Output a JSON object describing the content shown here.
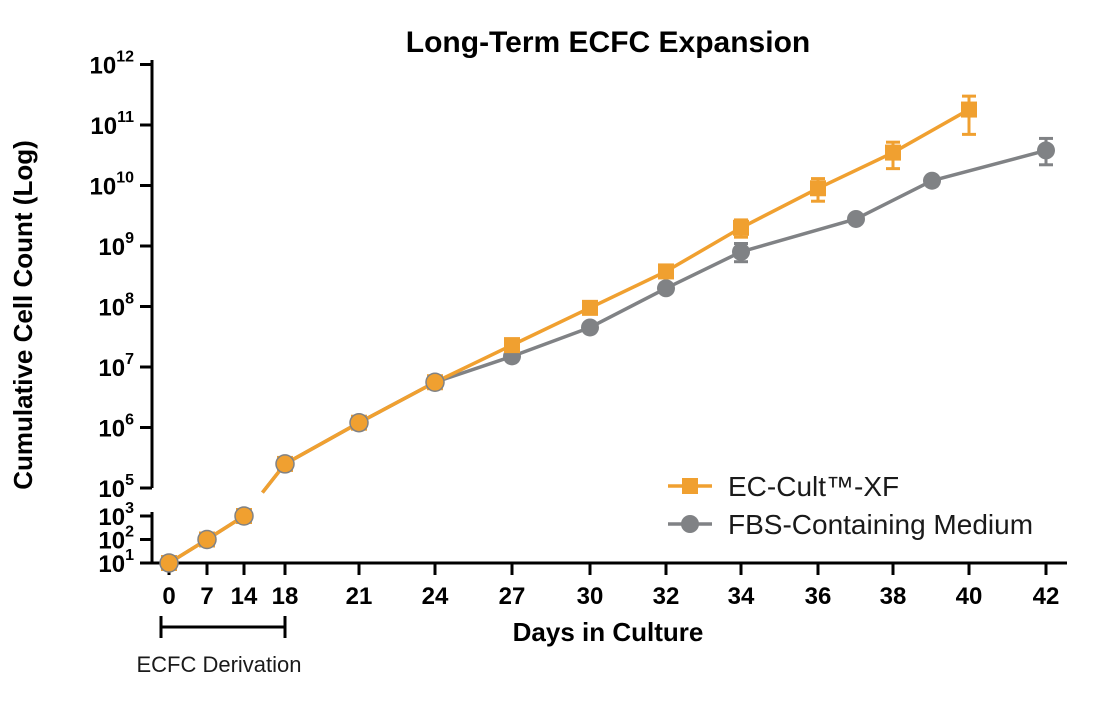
{
  "chart_data": {
    "type": "line",
    "title": "Long-Term ECFC Expansion",
    "xlabel": "Days in Culture",
    "ylabel": "Cumulative Cell Count (Log)",
    "y_scale": "log (broken axis)",
    "grid": false,
    "legend_position": "bottom-right",
    "x_ticks": [
      "0",
      "7",
      "14",
      "18",
      "21",
      "24",
      "27",
      "30",
      "32",
      "34",
      "36",
      "38",
      "40",
      "42"
    ],
    "y_ticks_lower": [
      {
        "base": "10",
        "exp": "1"
      },
      {
        "base": "10",
        "exp": "2"
      },
      {
        "base": "10",
        "exp": "3"
      }
    ],
    "y_ticks_upper": [
      {
        "base": "10",
        "exp": "5"
      },
      {
        "base": "10",
        "exp": "6"
      },
      {
        "base": "10",
        "exp": "7"
      },
      {
        "base": "10",
        "exp": "8"
      },
      {
        "base": "10",
        "exp": "9"
      },
      {
        "base": "10",
        "exp": "10"
      },
      {
        "base": "10",
        "exp": "11"
      },
      {
        "base": "10",
        "exp": "12"
      }
    ],
    "bracket_label": "ECFC Derivation",
    "bracket_range": [
      "0",
      "18"
    ],
    "series": [
      {
        "name": "EC-Cult™-XF",
        "color": "#F0A030",
        "marker": "square",
        "points": [
          {
            "x": "0",
            "y": 10
          },
          {
            "x": "7",
            "y": 100
          },
          {
            "x": "14",
            "y": 1000
          },
          {
            "x": "18",
            "y": 250000
          },
          {
            "x": "21",
            "y": 1200000
          },
          {
            "x": "24",
            "y": 5600000
          },
          {
            "x": "27",
            "y": 23000000
          },
          {
            "x": "30",
            "y": 95000000
          },
          {
            "x": "32",
            "y": 380000000
          },
          {
            "x": "34",
            "y": 2000000000,
            "err": [
              1400000000,
              2700000000
            ]
          },
          {
            "x": "36",
            "y": 9000000000,
            "err": [
              5500000000,
              13000000000
            ]
          },
          {
            "x": "38",
            "y": 35000000000,
            "err": [
              19000000000,
              52000000000
            ]
          },
          {
            "x": "40",
            "y": 180000000000,
            "err": [
              70000000000,
              300000000000
            ]
          }
        ]
      },
      {
        "name": "FBS-Containing Medium",
        "color": "#808285",
        "marker": "circle",
        "points": [
          {
            "x": "0",
            "y": 10
          },
          {
            "x": "7",
            "y": 100
          },
          {
            "x": "14",
            "y": 1000
          },
          {
            "x": "18",
            "y": 250000
          },
          {
            "x": "21",
            "y": 1200000
          },
          {
            "x": "24",
            "y": 5600000
          },
          {
            "x": "27",
            "y": 15000000
          },
          {
            "x": "30",
            "y": 45000000
          },
          {
            "x": "32",
            "y": 200000000
          },
          {
            "x": "34",
            "y": 800000000,
            "err": [
              550000000,
              1100000000
            ]
          },
          {
            "x": "37",
            "y": 2800000000
          },
          {
            "x": "39",
            "y": 12000000000
          },
          {
            "x": "42",
            "y": 38000000000,
            "err": [
              22000000000,
              60000000000
            ]
          }
        ]
      }
    ]
  }
}
